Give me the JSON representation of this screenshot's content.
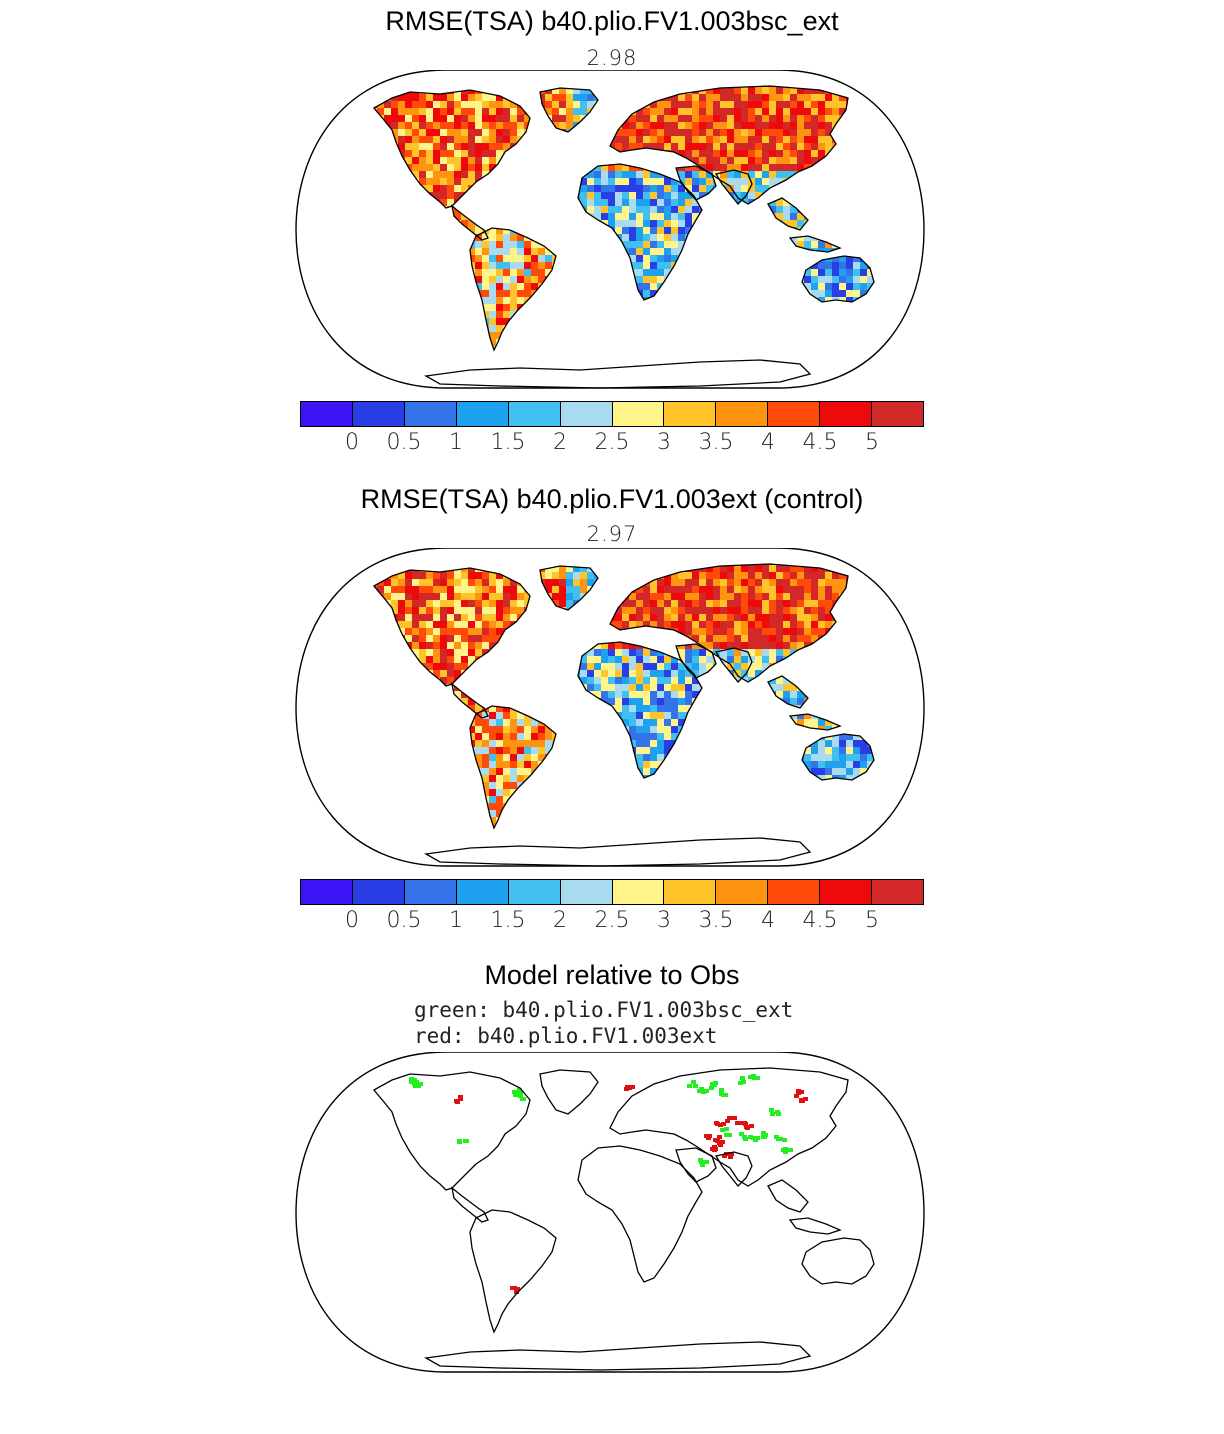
{
  "panels": [
    {
      "title": "RMSE(TSA) b40.plio.FV1.003bsc_ext",
      "value": "2.98"
    },
    {
      "title": "RMSE(TSA) b40.plio.FV1.003ext (control)",
      "value": "2.97"
    },
    {
      "title": "Model relative to Obs",
      "legend": [
        "green: b40.plio.FV1.003bsc_ext",
        "red: b40.plio.FV1.003ext"
      ]
    }
  ],
  "colorbar": {
    "colors": [
      "#3c14f5",
      "#2a3ee6",
      "#3474e8",
      "#1ea2f0",
      "#40bff0",
      "#a8daf0",
      "#fff48a",
      "#ffc42a",
      "#ff9410",
      "#ff4a0a",
      "#ee0a0a",
      "#d22828"
    ],
    "labels": [
      "0",
      "0.5",
      "1",
      "1.5",
      "2",
      "2.5",
      "3",
      "3.5",
      "4",
      "4.5",
      "5"
    ]
  },
  "marker_colors": {
    "green": "#22ee22",
    "red": "#dd1111"
  }
}
